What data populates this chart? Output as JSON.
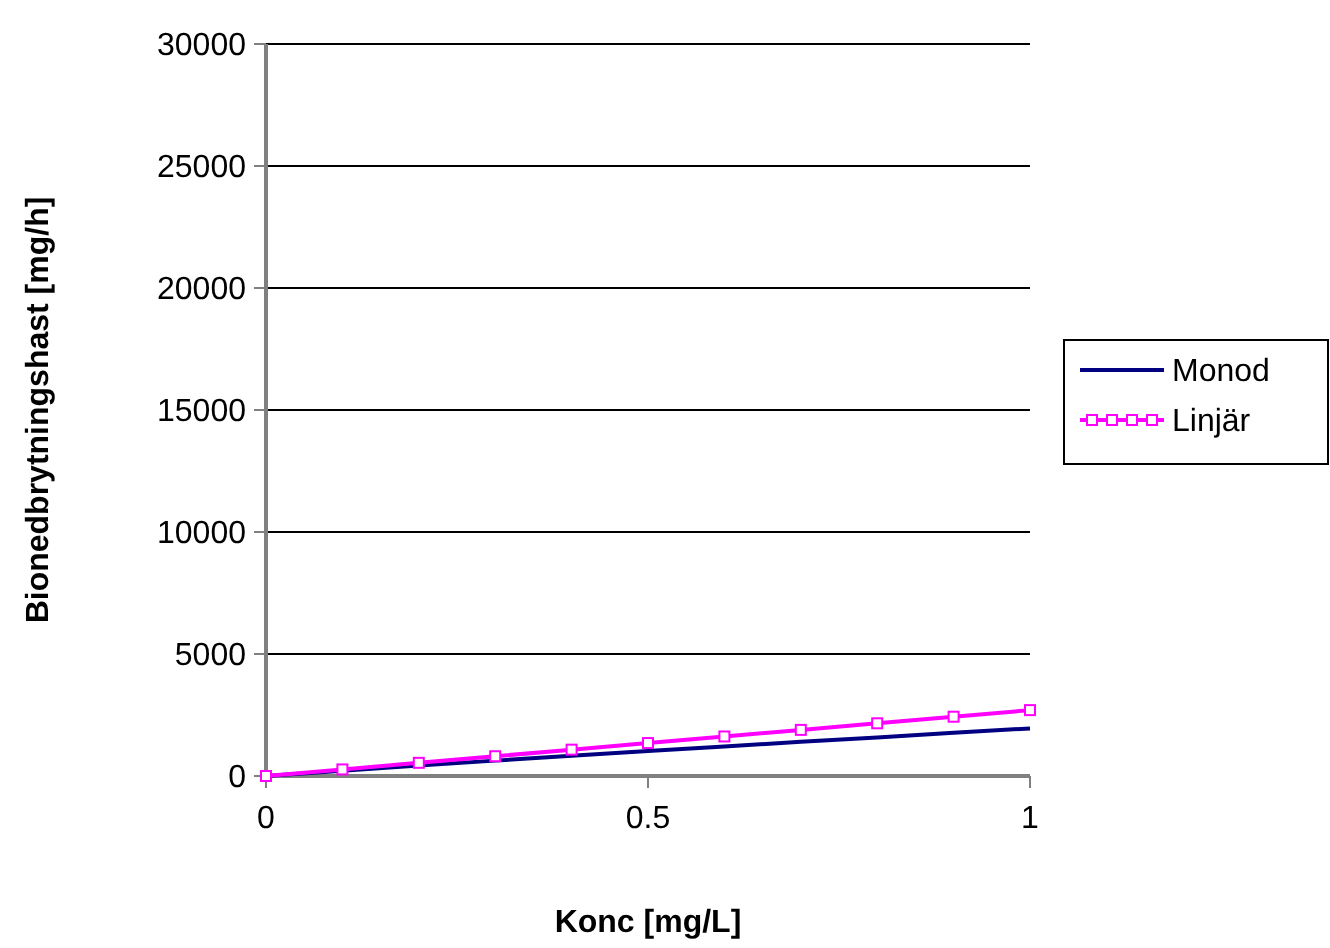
{
  "chart_data": {
    "type": "line",
    "xlabel": "Konc [mg/L]",
    "ylabel": "Bionedbrytningshast [mg/h]",
    "x": [
      0,
      0.1,
      0.2,
      0.3,
      0.4,
      0.5,
      0.6,
      0.7,
      0.8,
      0.9,
      1
    ],
    "series": [
      {
        "name": "Monod",
        "color": "#000080",
        "values": [
          0,
          220,
          430,
          630,
          830,
          1020,
          1210,
          1400,
          1580,
          1770,
          1950
        ]
      },
      {
        "name": "Linjär",
        "color": "#ff00ff",
        "values": [
          0,
          270,
          540,
          810,
          1080,
          1350,
          1620,
          1890,
          2160,
          2430,
          2700
        ],
        "marker": "square"
      }
    ],
    "xlim": [
      0,
      1
    ],
    "xticks": [
      0,
      0.5,
      1
    ],
    "ylim": [
      0,
      30000
    ],
    "yticks": [
      0,
      5000,
      10000,
      15000,
      20000,
      25000,
      30000
    ],
    "grid": "y",
    "legend": "right"
  }
}
